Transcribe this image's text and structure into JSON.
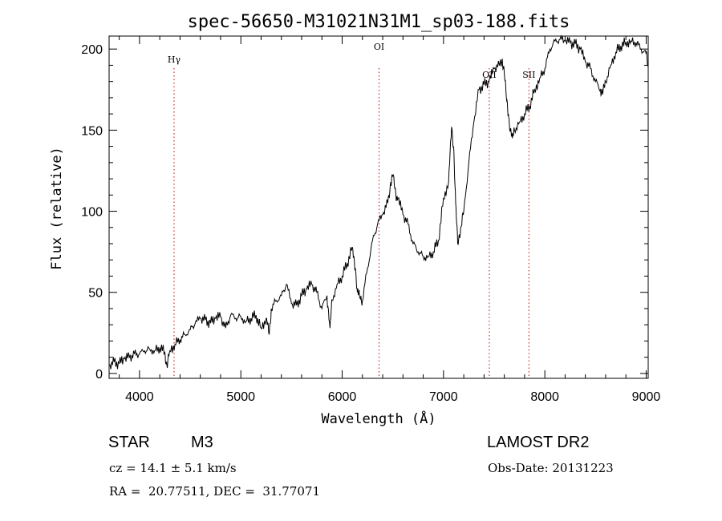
{
  "chart_data": {
    "type": "line",
    "title": "spec-56650-M31021N31M1_sp03-188.fits",
    "xlabel": "Wavelength (Å)",
    "ylabel": "Flux (relative)",
    "xlim": [
      3700,
      9020
    ],
    "ylim": [
      -3,
      208
    ],
    "xticks": [
      4000,
      5000,
      6000,
      7000,
      8000,
      9000
    ],
    "yticks": [
      0,
      50,
      100,
      150,
      200
    ],
    "grid": false,
    "line_color": "#000000",
    "line_labels": [
      {
        "label": "Hγ",
        "x": 4341
      },
      {
        "label": "OI",
        "x": 6364
      },
      {
        "label": "OII",
        "x": 7452
      },
      {
        "label": "SII",
        "x": 7843
      }
    ],
    "series": [
      {
        "x": [
          3700,
          3750,
          3800,
          3850,
          3900,
          3950,
          4000,
          4050,
          4100,
          4150,
          4200,
          4250,
          4270,
          4300,
          4350,
          4400,
          4450,
          4500,
          4550,
          4600,
          4650,
          4700,
          4750,
          4800,
          4850,
          4900,
          4950,
          5000,
          5050,
          5100,
          5150,
          5200,
          5250,
          5280,
          5300,
          5350,
          5400,
          5450,
          5500,
          5550,
          5600,
          5650,
          5700,
          5750,
          5800,
          5850,
          5880,
          5900,
          5950,
          6000,
          6050,
          6100,
          6130,
          6150,
          6170,
          6200,
          6250,
          6300,
          6350,
          6400,
          6450,
          6480,
          6500,
          6530,
          6550,
          6600,
          6650,
          6700,
          6750,
          6800,
          6850,
          6900,
          6950,
          7000,
          7050,
          7080,
          7100,
          7120,
          7140,
          7170,
          7200,
          7250,
          7300,
          7350,
          7400,
          7450,
          7500,
          7550,
          7580,
          7600,
          7620,
          7640,
          7660,
          7680,
          7700,
          7750,
          7800,
          7850,
          7900,
          7950,
          8000,
          8050,
          8100,
          8150,
          8200,
          8250,
          8300,
          8350,
          8400,
          8450,
          8500,
          8550,
          8570,
          8600,
          8650,
          8700,
          8750,
          8800,
          8850,
          8900,
          8950,
          9000,
          9020
        ],
        "y": [
          5,
          7,
          6,
          9,
          10,
          12,
          12,
          14,
          15,
          14,
          16,
          13,
          5,
          14,
          18,
          21,
          24,
          27,
          31,
          34,
          33,
          31,
          34,
          35,
          28,
          36,
          34,
          35,
          32,
          34,
          36,
          28,
          34,
          24,
          40,
          45,
          48,
          55,
          43,
          42,
          48,
          52,
          55,
          50,
          40,
          48,
          28,
          45,
          55,
          60,
          68,
          78,
          65,
          50,
          48,
          45,
          65,
          82,
          92,
          98,
          105,
          118,
          122,
          110,
          108,
          98,
          92,
          80,
          75,
          72,
          72,
          75,
          82,
          108,
          118,
          152,
          140,
          105,
          80,
          90,
          100,
          130,
          155,
          175,
          178,
          180,
          188,
          190,
          194,
          185,
          170,
          160,
          150,
          145,
          150,
          155,
          160,
          165,
          175,
          182,
          188,
          200,
          205,
          206,
          205,
          204,
          203,
          200,
          192,
          188,
          180,
          175,
          172,
          180,
          190,
          198,
          202,
          204,
          205,
          204,
          200,
          197,
          190
        ]
      }
    ]
  },
  "info": {
    "object_type": "STAR",
    "subclass": "M3",
    "survey": "LAMOST DR2",
    "cz": "cz = 14.1 ± 5.1 km/s",
    "obs_date": "Obs-Date: 20131223",
    "radec": "RA =  20.77511, DEC =  31.77071"
  }
}
